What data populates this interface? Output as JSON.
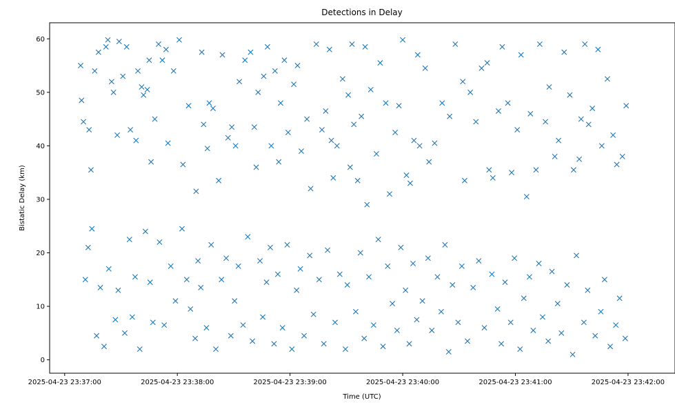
{
  "chart_data": {
    "type": "scatter",
    "title": "Detections in Delay",
    "xlabel": "Time (UTC)",
    "ylabel": "Bistatic Delay (km)",
    "x_start": "2025-04-23 23:37:00",
    "xlim": [
      "2025-04-23 23:36:52",
      "2025-04-23 23:42:25"
    ],
    "ylim": [
      -2.5,
      63
    ],
    "xticks": [
      "2025-04-23 23:37:00",
      "2025-04-23 23:38:00",
      "2025-04-23 23:39:00",
      "2025-04-23 23:40:00",
      "2025-04-23 23:41:00",
      "2025-04-23 23:42:00"
    ],
    "yticks": [
      0,
      10,
      20,
      30,
      40,
      50,
      60
    ],
    "marker": "x",
    "color": "#1f77b4",
    "grid": false,
    "series": [
      {
        "points": [
          [
            8.5,
            55.0
          ],
          [
            9.0,
            48.5
          ],
          [
            10.0,
            44.5
          ],
          [
            13.0,
            43.0
          ],
          [
            14.0,
            35.5
          ],
          [
            16.0,
            54.0
          ],
          [
            18.0,
            57.5
          ],
          [
            22.0,
            58.5
          ],
          [
            23.0,
            59.8
          ],
          [
            25.0,
            52.0
          ],
          [
            26.0,
            50.0
          ],
          [
            28.0,
            42.0
          ],
          [
            29.0,
            59.5
          ],
          [
            31.0,
            53.0
          ],
          [
            33.0,
            58.5
          ],
          [
            35.0,
            43.0
          ],
          [
            38.0,
            41.0
          ],
          [
            39.0,
            54.0
          ],
          [
            41.0,
            51.0
          ],
          [
            42.0,
            49.5
          ],
          [
            44.0,
            50.5
          ],
          [
            45.0,
            56.0
          ],
          [
            46.0,
            37.0
          ],
          [
            48.0,
            45.0
          ],
          [
            50.0,
            59.0
          ],
          [
            52.0,
            56.0
          ],
          [
            54.0,
            58.0
          ],
          [
            55.0,
            40.5
          ],
          [
            58.0,
            54.0
          ],
          [
            61.0,
            59.8
          ],
          [
            63.0,
            36.5
          ],
          [
            66.0,
            47.5
          ],
          [
            70.0,
            31.5
          ],
          [
            73.0,
            57.5
          ],
          [
            74.0,
            44.0
          ],
          [
            76.0,
            39.5
          ],
          [
            77.0,
            48.0
          ],
          [
            79.0,
            47.0
          ],
          [
            82.0,
            33.5
          ],
          [
            84.0,
            57.0
          ],
          [
            87.0,
            41.5
          ],
          [
            89.0,
            43.5
          ],
          [
            91.0,
            40.0
          ],
          [
            93.0,
            52.0
          ],
          [
            96.0,
            56.0
          ],
          [
            99.0,
            57.5
          ],
          [
            101.0,
            43.5
          ],
          [
            102.0,
            36.0
          ],
          [
            103.0,
            50.0
          ],
          [
            106.0,
            53.0
          ],
          [
            108.0,
            58.5
          ],
          [
            110.0,
            40.0
          ],
          [
            112.0,
            54.0
          ],
          [
            114.0,
            37.0
          ],
          [
            115.0,
            48.0
          ],
          [
            117.0,
            56.0
          ],
          [
            119.0,
            42.5
          ],
          [
            122.0,
            51.5
          ],
          [
            124.0,
            55.0
          ],
          [
            126.0,
            39.0
          ],
          [
            129.0,
            45.0
          ],
          [
            131.0,
            32.0
          ],
          [
            134.0,
            59.0
          ],
          [
            137.0,
            43.0
          ],
          [
            139.0,
            46.5
          ],
          [
            141.0,
            58.0
          ],
          [
            142.0,
            41.0
          ],
          [
            143.0,
            34.0
          ],
          [
            145.0,
            40.0
          ],
          [
            148.0,
            52.5
          ],
          [
            151.0,
            49.5
          ],
          [
            152.0,
            36.0
          ],
          [
            153.0,
            59.0
          ],
          [
            154.0,
            44.0
          ],
          [
            156.0,
            33.5
          ],
          [
            158.0,
            45.5
          ],
          [
            160.0,
            58.5
          ],
          [
            161.0,
            29.0
          ],
          [
            163.0,
            50.5
          ],
          [
            166.0,
            38.5
          ],
          [
            168.0,
            55.5
          ],
          [
            171.0,
            48.0
          ],
          [
            173.0,
            31.0
          ],
          [
            176.0,
            42.5
          ],
          [
            178.0,
            47.5
          ],
          [
            180.0,
            59.8
          ],
          [
            182.0,
            34.5
          ],
          [
            184.0,
            33.0
          ],
          [
            186.0,
            41.0
          ],
          [
            188.0,
            57.0
          ],
          [
            189.0,
            40.0
          ],
          [
            192.0,
            54.5
          ],
          [
            194.0,
            37.0
          ],
          [
            197.0,
            40.5
          ],
          [
            201.0,
            48.0
          ],
          [
            205.0,
            45.5
          ],
          [
            208.0,
            59.0
          ],
          [
            212.0,
            52.0
          ],
          [
            213.0,
            33.5
          ],
          [
            216.0,
            50.0
          ],
          [
            219.0,
            44.5
          ],
          [
            222.0,
            54.5
          ],
          [
            225.0,
            55.5
          ],
          [
            226.0,
            35.5
          ],
          [
            228.0,
            34.0
          ],
          [
            231.0,
            46.5
          ],
          [
            233.0,
            58.5
          ],
          [
            236.0,
            48.0
          ],
          [
            238.0,
            35.0
          ],
          [
            241.0,
            43.0
          ],
          [
            243.0,
            57.0
          ],
          [
            246.0,
            30.5
          ],
          [
            248.0,
            46.0
          ],
          [
            251.0,
            35.5
          ],
          [
            253.0,
            59.0
          ],
          [
            256.0,
            44.5
          ],
          [
            258.0,
            51.0
          ],
          [
            261.0,
            38.0
          ],
          [
            263.0,
            41.0
          ],
          [
            266.0,
            57.5
          ],
          [
            269.0,
            49.5
          ],
          [
            271.0,
            35.5
          ],
          [
            274.0,
            37.5
          ],
          [
            275.0,
            45.0
          ],
          [
            277.0,
            59.0
          ],
          [
            279.0,
            44.0
          ],
          [
            281.0,
            47.0
          ],
          [
            284.0,
            58.0
          ],
          [
            286.0,
            40.0
          ],
          [
            289.0,
            52.5
          ],
          [
            292.0,
            42.0
          ],
          [
            294.0,
            36.5
          ],
          [
            297.0,
            38.0
          ],
          [
            299.0,
            47.5
          ],
          [
            11.0,
            15.0
          ],
          [
            12.5,
            21.0
          ],
          [
            14.5,
            24.5
          ],
          [
            17.0,
            4.5
          ],
          [
            19.0,
            13.5
          ],
          [
            21.0,
            2.5
          ],
          [
            23.5,
            17.0
          ],
          [
            27.0,
            7.5
          ],
          [
            28.5,
            13.0
          ],
          [
            32.0,
            5.0
          ],
          [
            34.5,
            22.5
          ],
          [
            36.0,
            8.0
          ],
          [
            37.5,
            15.5
          ],
          [
            40.0,
            2.0
          ],
          [
            43.0,
            24.0
          ],
          [
            45.5,
            14.5
          ],
          [
            47.0,
            7.0
          ],
          [
            50.5,
            22.0
          ],
          [
            53.0,
            6.5
          ],
          [
            56.5,
            17.5
          ],
          [
            59.0,
            11.0
          ],
          [
            62.5,
            24.5
          ],
          [
            65.0,
            15.0
          ],
          [
            67.0,
            9.5
          ],
          [
            69.5,
            4.0
          ],
          [
            71.0,
            18.5
          ],
          [
            72.5,
            13.5
          ],
          [
            75.5,
            6.0
          ],
          [
            78.0,
            21.5
          ],
          [
            80.5,
            2.0
          ],
          [
            83.5,
            15.0
          ],
          [
            86.0,
            19.0
          ],
          [
            88.5,
            4.5
          ],
          [
            90.5,
            11.0
          ],
          [
            92.5,
            17.5
          ],
          [
            95.0,
            6.5
          ],
          [
            97.5,
            23.0
          ],
          [
            100.0,
            3.5
          ],
          [
            104.0,
            18.5
          ],
          [
            105.5,
            8.0
          ],
          [
            107.5,
            14.5
          ],
          [
            109.5,
            21.0
          ],
          [
            111.5,
            3.0
          ],
          [
            113.5,
            16.0
          ],
          [
            116.0,
            6.0
          ],
          [
            118.5,
            21.5
          ],
          [
            121.0,
            2.0
          ],
          [
            123.5,
            13.0
          ],
          [
            125.5,
            17.0
          ],
          [
            127.5,
            4.5
          ],
          [
            130.5,
            19.5
          ],
          [
            132.5,
            8.5
          ],
          [
            135.5,
            15.0
          ],
          [
            138.0,
            3.0
          ],
          [
            140.0,
            20.5
          ],
          [
            144.0,
            7.0
          ],
          [
            146.5,
            16.0
          ],
          [
            149.5,
            2.0
          ],
          [
            150.5,
            14.0
          ],
          [
            155.0,
            9.0
          ],
          [
            157.5,
            20.0
          ],
          [
            159.5,
            4.0
          ],
          [
            162.0,
            15.5
          ],
          [
            164.5,
            6.5
          ],
          [
            167.0,
            22.5
          ],
          [
            169.5,
            2.5
          ],
          [
            172.0,
            17.5
          ],
          [
            174.5,
            10.5
          ],
          [
            177.0,
            5.5
          ],
          [
            179.0,
            21.0
          ],
          [
            181.5,
            13.0
          ],
          [
            183.5,
            3.0
          ],
          [
            185.5,
            18.0
          ],
          [
            187.5,
            7.5
          ],
          [
            190.5,
            11.0
          ],
          [
            193.5,
            19.0
          ],
          [
            195.5,
            5.5
          ],
          [
            198.5,
            15.5
          ],
          [
            200.5,
            9.0
          ],
          [
            202.5,
            21.5
          ],
          [
            204.5,
            1.5
          ],
          [
            206.5,
            14.0
          ],
          [
            209.5,
            7.0
          ],
          [
            211.5,
            17.5
          ],
          [
            214.5,
            3.5
          ],
          [
            217.5,
            13.5
          ],
          [
            220.5,
            18.5
          ],
          [
            223.5,
            6.0
          ],
          [
            227.5,
            16.0
          ],
          [
            230.5,
            9.5
          ],
          [
            232.5,
            3.0
          ],
          [
            234.5,
            14.5
          ],
          [
            237.5,
            7.0
          ],
          [
            239.5,
            19.0
          ],
          [
            242.5,
            2.0
          ],
          [
            244.5,
            11.5
          ],
          [
            247.5,
            15.5
          ],
          [
            249.5,
            5.5
          ],
          [
            252.5,
            18.0
          ],
          [
            254.5,
            8.0
          ],
          [
            257.5,
            3.5
          ],
          [
            259.5,
            16.5
          ],
          [
            262.5,
            10.5
          ],
          [
            264.5,
            5.0
          ],
          [
            267.5,
            14.0
          ],
          [
            270.5,
            1.0
          ],
          [
            272.5,
            19.5
          ],
          [
            276.5,
            7.0
          ],
          [
            278.5,
            13.0
          ],
          [
            282.5,
            4.5
          ],
          [
            285.5,
            9.0
          ],
          [
            287.5,
            15.0
          ],
          [
            290.5,
            2.5
          ],
          [
            293.5,
            6.5
          ],
          [
            295.5,
            11.5
          ],
          [
            298.5,
            4.0
          ]
        ]
      }
    ]
  }
}
